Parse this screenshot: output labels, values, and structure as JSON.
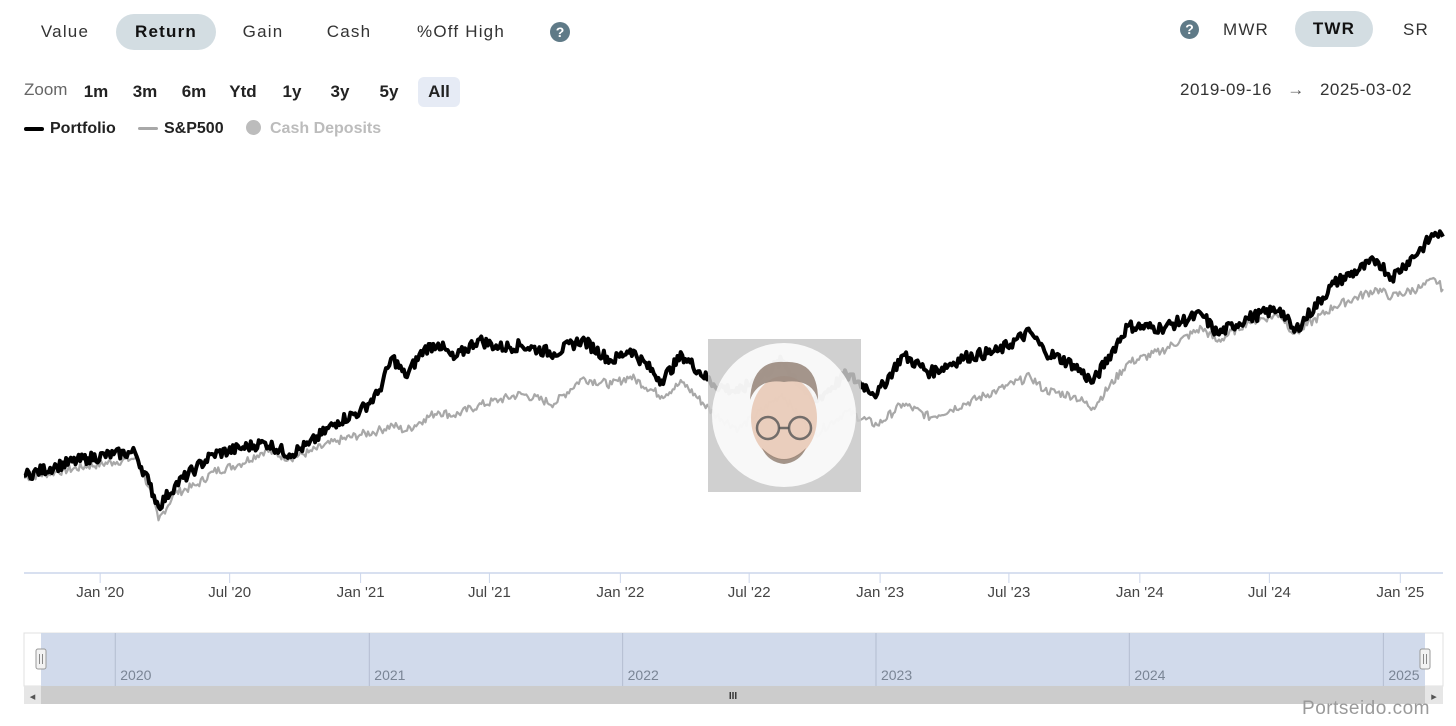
{
  "tabs": [
    {
      "label": "Value",
      "active": false
    },
    {
      "label": "Return",
      "active": true
    },
    {
      "label": "Gain",
      "active": false
    },
    {
      "label": "Cash",
      "active": false
    },
    {
      "label": "%Off High",
      "active": false
    }
  ],
  "methods": [
    {
      "label": "MWR",
      "active": false
    },
    {
      "label": "TWR",
      "active": true
    },
    {
      "label": "SR",
      "active": false
    }
  ],
  "help_glyph": "?",
  "zoom": {
    "label": "Zoom",
    "options": [
      "1m",
      "3m",
      "6m",
      "Ytd",
      "1y",
      "3y",
      "5y",
      "All"
    ],
    "active": "All"
  },
  "date_range": {
    "from": "2019-09-16",
    "arrow": "→",
    "to": "2025-03-02"
  },
  "legend": [
    {
      "name": "Portfolio",
      "color": "#000000",
      "enabled": true
    },
    {
      "name": "S&P500",
      "color": "#a8a8a8",
      "enabled": true
    },
    {
      "name": "Cash Deposits",
      "color": "#bcbcbc",
      "enabled": false
    }
  ],
  "chart_data": {
    "type": "line",
    "x_tick_labels": [
      "Jan '20",
      "Jul '20",
      "Jan '21",
      "Jul '21",
      "Jan '22",
      "Jul '22",
      "Jan '23",
      "Jul '23",
      "Jan '24",
      "Jul '24",
      "Jan '25"
    ],
    "y_axis_labels_shown": false,
    "grid": false,
    "legend_position": "top-left",
    "x_start": "2019-09-16",
    "x_end": "2025-03-02",
    "series": [
      {
        "name": "Portfolio",
        "color": "#000000",
        "points": [
          [
            "2019-09-16",
            0.29
          ],
          [
            "2019-11-01",
            0.34
          ],
          [
            "2019-12-15",
            0.38
          ],
          [
            "2020-01-20",
            0.4
          ],
          [
            "2020-02-19",
            0.41
          ],
          [
            "2020-03-10",
            0.25
          ],
          [
            "2020-03-23",
            0.13
          ],
          [
            "2020-04-15",
            0.24
          ],
          [
            "2020-05-15",
            0.33
          ],
          [
            "2020-06-08",
            0.4
          ],
          [
            "2020-07-15",
            0.43
          ],
          [
            "2020-08-20",
            0.46
          ],
          [
            "2020-09-23",
            0.4
          ],
          [
            "2020-10-20",
            0.45
          ],
          [
            "2020-11-30",
            0.57
          ],
          [
            "2020-12-31",
            0.62
          ],
          [
            "2021-01-25",
            0.71
          ],
          [
            "2021-02-15",
            0.9
          ],
          [
            "2021-03-05",
            0.8
          ],
          [
            "2021-03-31",
            0.94
          ],
          [
            "2021-04-20",
            0.97
          ],
          [
            "2021-05-12",
            0.89
          ],
          [
            "2021-06-15",
            0.99
          ],
          [
            "2021-07-15",
            0.95
          ],
          [
            "2021-08-15",
            0.96
          ],
          [
            "2021-09-30",
            0.92
          ],
          [
            "2021-11-08",
            0.99
          ],
          [
            "2021-12-20",
            0.88
          ],
          [
            "2022-01-15",
            0.94
          ],
          [
            "2022-02-28",
            0.78
          ],
          [
            "2022-03-29",
            0.91
          ],
          [
            "2022-05-12",
            0.76
          ],
          [
            "2022-06-16",
            0.72
          ],
          [
            "2022-08-16",
            0.88
          ],
          [
            "2022-09-30",
            0.67
          ],
          [
            "2022-11-15",
            0.81
          ],
          [
            "2022-12-28",
            0.71
          ],
          [
            "2023-02-02",
            0.91
          ],
          [
            "2023-03-13",
            0.82
          ],
          [
            "2023-04-30",
            0.9
          ],
          [
            "2023-06-15",
            0.93
          ],
          [
            "2023-07-31",
            1.03
          ],
          [
            "2023-08-20",
            0.93
          ],
          [
            "2023-09-30",
            0.86
          ],
          [
            "2023-10-27",
            0.77
          ],
          [
            "2023-12-15",
            1.06
          ],
          [
            "2024-01-31",
            1.05
          ],
          [
            "2024-03-28",
            1.12
          ],
          [
            "2024-04-19",
            1.02
          ],
          [
            "2024-05-31",
            1.1
          ],
          [
            "2024-07-16",
            1.15
          ],
          [
            "2024-08-05",
            1.03
          ],
          [
            "2024-09-30",
            1.28
          ],
          [
            "2024-11-29",
            1.4
          ],
          [
            "2024-12-20",
            1.31
          ],
          [
            "2025-01-31",
            1.46
          ],
          [
            "2025-02-19",
            1.54
          ],
          [
            "2025-03-02",
            1.52
          ]
        ]
      },
      {
        "name": "S&P500",
        "color": "#a8a8a8",
        "points": [
          [
            "2019-09-16",
            0.28
          ],
          [
            "2019-11-01",
            0.31
          ],
          [
            "2019-12-15",
            0.34
          ],
          [
            "2020-01-20",
            0.36
          ],
          [
            "2020-02-19",
            0.38
          ],
          [
            "2020-03-10",
            0.23
          ],
          [
            "2020-03-23",
            0.06
          ],
          [
            "2020-04-15",
            0.2
          ],
          [
            "2020-05-15",
            0.24
          ],
          [
            "2020-06-08",
            0.31
          ],
          [
            "2020-07-15",
            0.35
          ],
          [
            "2020-08-20",
            0.42
          ],
          [
            "2020-09-23",
            0.38
          ],
          [
            "2020-10-20",
            0.41
          ],
          [
            "2020-11-30",
            0.47
          ],
          [
            "2020-12-31",
            0.5
          ],
          [
            "2021-01-25",
            0.52
          ],
          [
            "2021-02-15",
            0.55
          ],
          [
            "2021-03-05",
            0.52
          ],
          [
            "2021-03-31",
            0.58
          ],
          [
            "2021-04-20",
            0.62
          ],
          [
            "2021-05-12",
            0.6
          ],
          [
            "2021-06-15",
            0.65
          ],
          [
            "2021-07-15",
            0.68
          ],
          [
            "2021-08-15",
            0.71
          ],
          [
            "2021-09-30",
            0.66
          ],
          [
            "2021-11-08",
            0.79
          ],
          [
            "2021-12-20",
            0.76
          ],
          [
            "2022-01-15",
            0.8
          ],
          [
            "2022-02-28",
            0.7
          ],
          [
            "2022-03-29",
            0.77
          ],
          [
            "2022-05-12",
            0.61
          ],
          [
            "2022-06-16",
            0.53
          ],
          [
            "2022-08-16",
            0.71
          ],
          [
            "2022-09-30",
            0.5
          ],
          [
            "2022-11-15",
            0.62
          ],
          [
            "2022-12-28",
            0.55
          ],
          [
            "2023-02-02",
            0.66
          ],
          [
            "2023-03-13",
            0.59
          ],
          [
            "2023-04-30",
            0.66
          ],
          [
            "2023-06-15",
            0.73
          ],
          [
            "2023-07-31",
            0.8
          ],
          [
            "2023-08-20",
            0.73
          ],
          [
            "2023-09-30",
            0.7
          ],
          [
            "2023-10-27",
            0.64
          ],
          [
            "2023-12-15",
            0.87
          ],
          [
            "2024-01-31",
            0.93
          ],
          [
            "2024-03-28",
            1.05
          ],
          [
            "2024-04-19",
            0.98
          ],
          [
            "2024-05-31",
            1.08
          ],
          [
            "2024-07-16",
            1.12
          ],
          [
            "2024-08-05",
            1.02
          ],
          [
            "2024-09-30",
            1.16
          ],
          [
            "2024-11-29",
            1.25
          ],
          [
            "2024-12-20",
            1.21
          ],
          [
            "2025-01-31",
            1.26
          ],
          [
            "2025-02-19",
            1.3
          ],
          [
            "2025-03-02",
            1.25
          ]
        ]
      }
    ]
  },
  "navigator": {
    "year_labels": [
      "2020",
      "2021",
      "2022",
      "2023",
      "2024",
      "2025"
    ],
    "scroll_glyph": "III",
    "handle_glyph": "II",
    "left_arrow": "◂",
    "right_arrow": "▸"
  },
  "watermark": "Portseido.com"
}
